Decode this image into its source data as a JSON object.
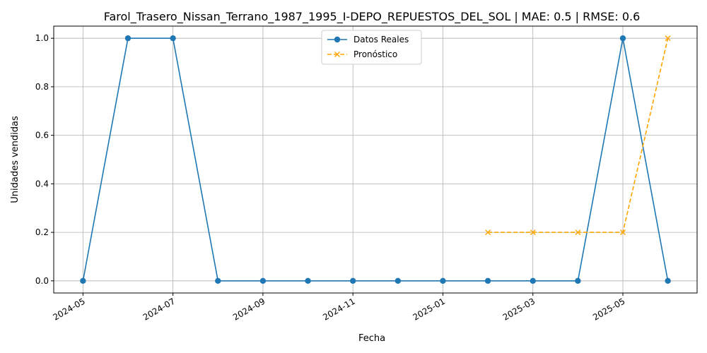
{
  "chart_data": {
    "type": "line",
    "title": "Farol_Trasero_Nissan_Terrano_1987_1995_I-DEPO_REPUESTOS_DEL_SOL | MAE: 0.5 | RMSE: 0.6",
    "xlabel": "Fecha",
    "ylabel": "Unidades vendidas",
    "x_tick_labels": [
      "2024-05",
      "2024-07",
      "2024-09",
      "2024-11",
      "2025-01",
      "2025-03",
      "2025-05"
    ],
    "y_tick_labels": [
      "0.0",
      "0.2",
      "0.4",
      "0.6",
      "0.8",
      "1.0"
    ],
    "y_ticks": [
      0,
      0.2,
      0.4,
      0.6,
      0.8,
      1.0
    ],
    "ylim": [
      -0.05,
      1.05
    ],
    "grid": true,
    "legend_position": "top-center",
    "series": [
      {
        "name": "Datos Reales",
        "color": "#1f77b4",
        "style": "solid",
        "marker": "circle",
        "x": [
          "2024-05",
          "2024-06",
          "2024-07",
          "2024-08",
          "2024-09",
          "2024-10",
          "2024-11",
          "2024-12",
          "2025-01",
          "2025-02",
          "2025-03",
          "2025-04",
          "2025-05",
          "2025-06"
        ],
        "values": [
          0,
          1,
          1,
          0,
          0,
          0,
          0,
          0,
          0,
          0,
          0,
          0,
          1,
          0
        ]
      },
      {
        "name": "Pronóstico",
        "color": "#ffa500",
        "style": "dashed",
        "marker": "x",
        "x": [
          "2025-02",
          "2025-03",
          "2025-04",
          "2025-05",
          "2025-06"
        ],
        "values": [
          0.2,
          0.2,
          0.2,
          0.2,
          1.0
        ]
      }
    ]
  }
}
